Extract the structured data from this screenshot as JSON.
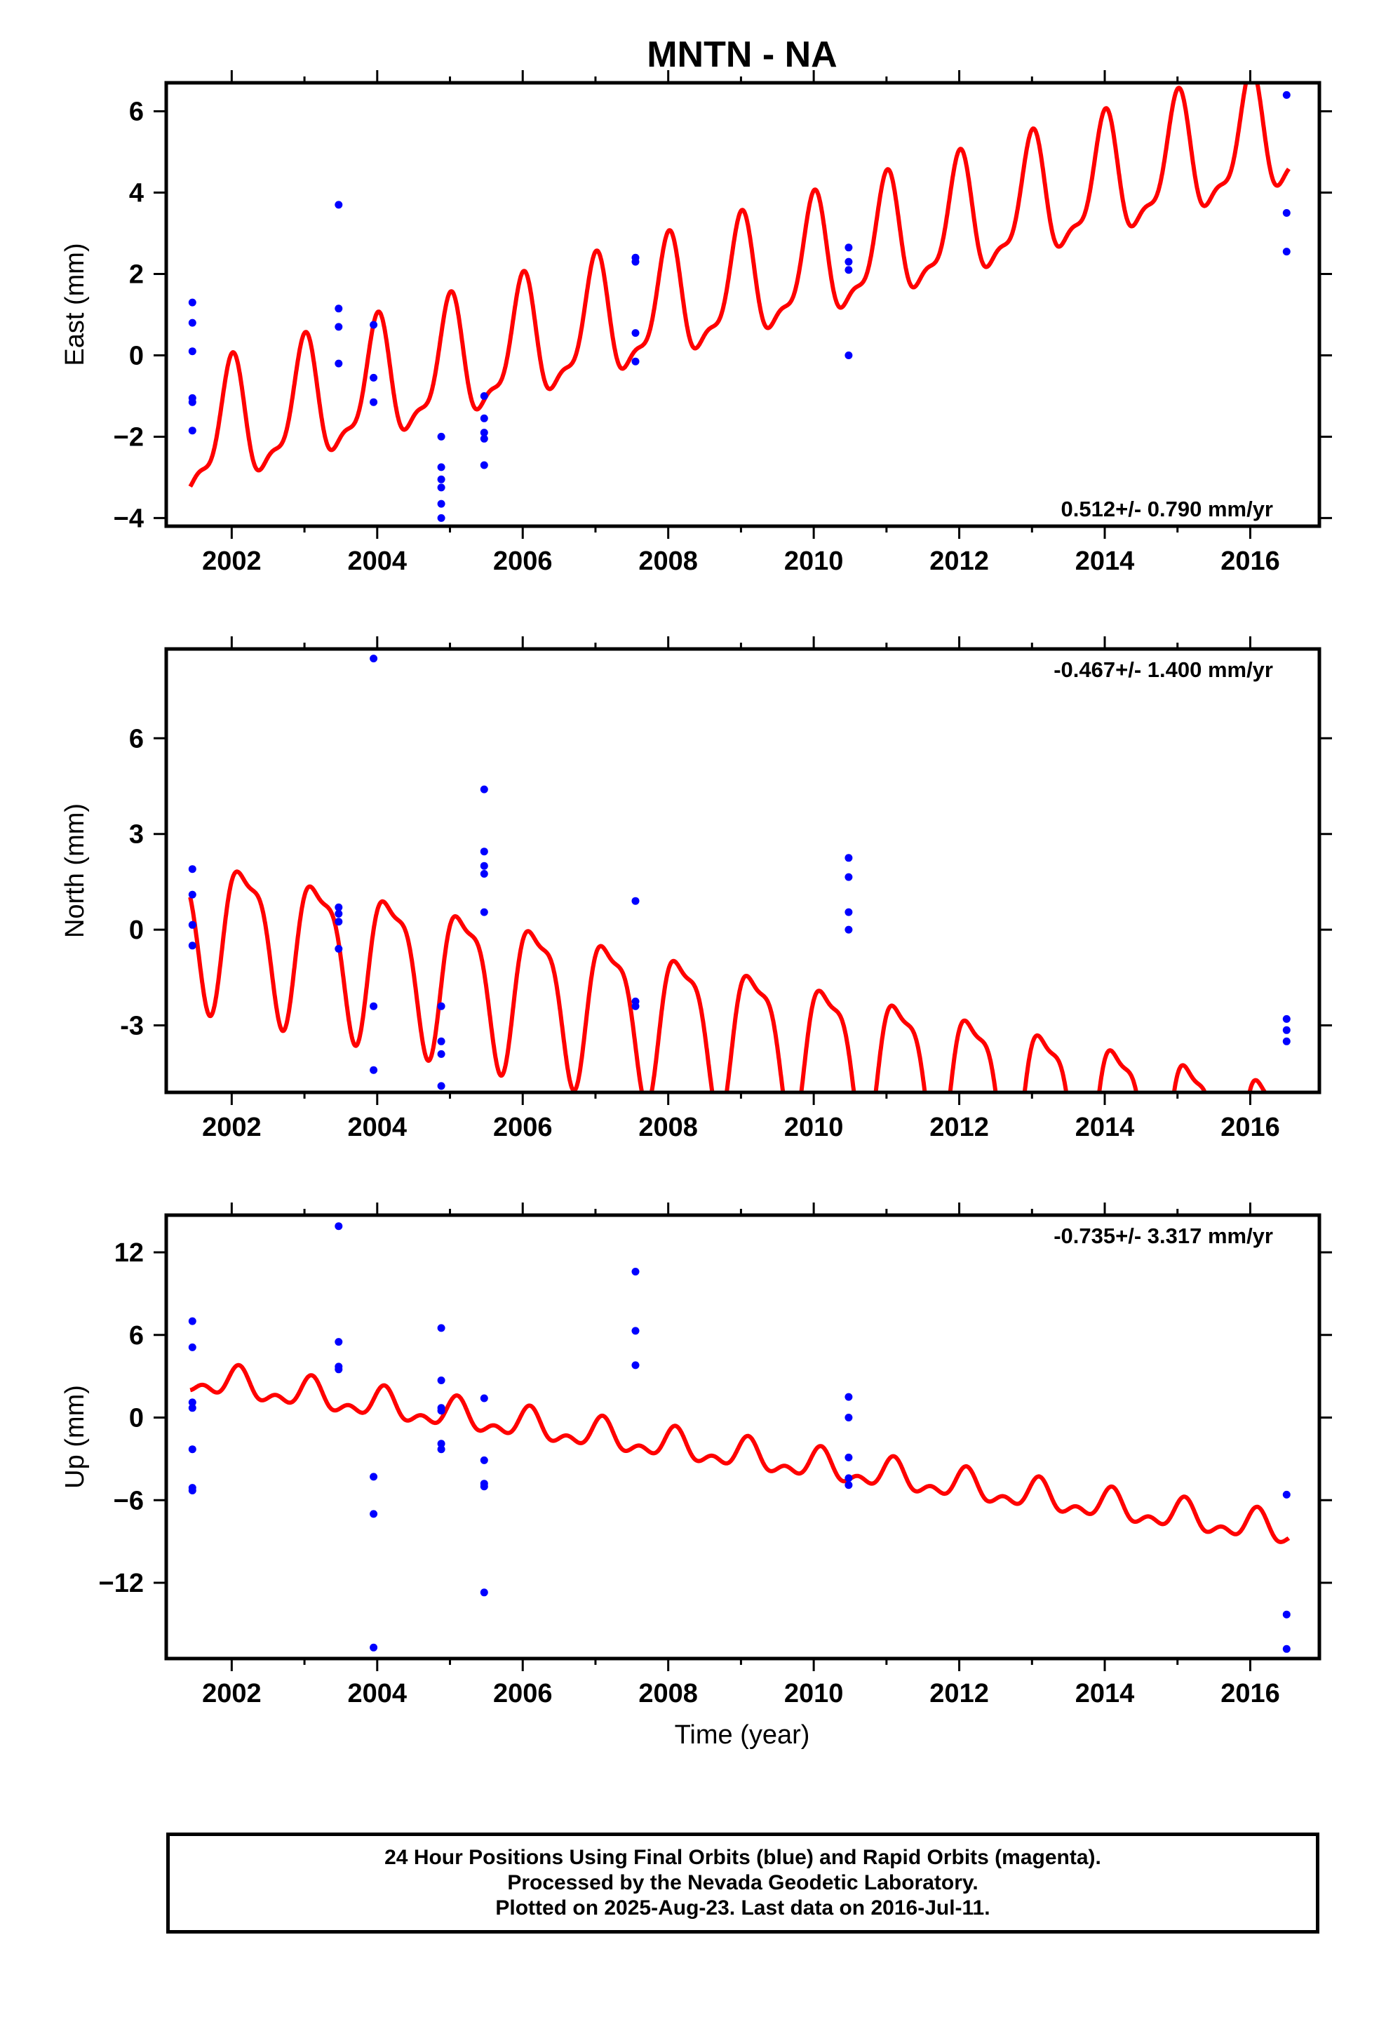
{
  "title": "MNTN - NA",
  "colors": {
    "model": "#ff0000",
    "final_orbits": "#0000ff",
    "axes": "#000000"
  },
  "xlabel": "Time (year)",
  "footer": {
    "line1": "24 Hour Positions Using Final Orbits (blue) and Rapid Orbits (magenta).",
    "line2": "Processed by the Nevada Geodetic Laboratory.",
    "line3": "Plotted on 2025-Aug-23. Last data on 2016-Jul-11."
  },
  "chart_data": [
    {
      "type": "scatter",
      "component": "east",
      "ylabel": "East (mm)",
      "rate_label": "0.512+/- 0.790 mm/yr",
      "xlim": [
        2001.1,
        2016.95
      ],
      "ylim": [
        -4.2,
        6.7
      ],
      "x_ticks": [
        2002,
        2004,
        2006,
        2008,
        2010,
        2012,
        2014,
        2016
      ],
      "y_ticks": [
        -4,
        -2,
        0,
        2,
        4,
        6
      ],
      "y_tick_labels": [
        "−4",
        "−2",
        "0",
        "2",
        "4",
        "6"
      ],
      "points": [
        [
          2001.46,
          1.3
        ],
        [
          2001.46,
          0.8
        ],
        [
          2001.46,
          0.1
        ],
        [
          2001.46,
          -1.05
        ],
        [
          2001.46,
          -1.15
        ],
        [
          2001.46,
          -1.85
        ],
        [
          2003.47,
          3.7
        ],
        [
          2003.47,
          1.15
        ],
        [
          2003.47,
          0.7
        ],
        [
          2003.47,
          -0.2
        ],
        [
          2003.95,
          0.75
        ],
        [
          2003.95,
          -0.55
        ],
        [
          2003.95,
          -1.15
        ],
        [
          2004.88,
          -2.0
        ],
        [
          2004.88,
          -2.75
        ],
        [
          2004.88,
          -3.05
        ],
        [
          2004.88,
          -3.25
        ],
        [
          2004.88,
          -3.65
        ],
        [
          2004.88,
          -4.0
        ],
        [
          2005.47,
          -1.0
        ],
        [
          2005.47,
          -1.55
        ],
        [
          2005.47,
          -1.9
        ],
        [
          2005.47,
          -2.05
        ],
        [
          2005.47,
          -2.7
        ],
        [
          2007.55,
          2.4
        ],
        [
          2007.55,
          2.3
        ],
        [
          2007.55,
          0.55
        ],
        [
          2007.55,
          -0.15
        ],
        [
          2010.48,
          2.65
        ],
        [
          2010.48,
          2.3
        ],
        [
          2010.48,
          2.1
        ],
        [
          2010.48,
          0.0
        ],
        [
          2016.5,
          6.4
        ],
        [
          2016.5,
          3.5
        ],
        [
          2016.5,
          2.55
        ]
      ],
      "model": {
        "intercept": -2.1,
        "t0": 2001.43,
        "rate": 0.5,
        "annual_amp": 1.4,
        "annual_phase": 1.6,
        "semi_amp": 0.5,
        "semi_phase": 1.2
      }
    },
    {
      "type": "scatter",
      "component": "north",
      "ylabel": "North (mm)",
      "rate_label": "-0.467+/- 1.400 mm/yr",
      "xlim": [
        2001.1,
        2016.95
      ],
      "ylim": [
        -5.1,
        8.8
      ],
      "x_ticks": [
        2002,
        2004,
        2006,
        2008,
        2010,
        2012,
        2014,
        2016
      ],
      "y_ticks": [
        -3,
        0,
        3,
        6
      ],
      "y_tick_labels": [
        "-3",
        "0",
        "3",
        "6"
      ],
      "points": [
        [
          2001.46,
          1.9
        ],
        [
          2001.46,
          1.1
        ],
        [
          2001.46,
          0.15
        ],
        [
          2001.46,
          -0.5
        ],
        [
          2003.47,
          0.7
        ],
        [
          2003.47,
          0.5
        ],
        [
          2003.47,
          0.25
        ],
        [
          2003.47,
          -0.6
        ],
        [
          2003.95,
          8.5
        ],
        [
          2003.95,
          -2.4
        ],
        [
          2003.95,
          -4.4
        ],
        [
          2004.88,
          -2.4
        ],
        [
          2004.88,
          -3.5
        ],
        [
          2004.88,
          -3.9
        ],
        [
          2004.88,
          -4.9
        ],
        [
          2005.47,
          4.4
        ],
        [
          2005.47,
          2.45
        ],
        [
          2005.47,
          2.0
        ],
        [
          2005.47,
          1.75
        ],
        [
          2005.47,
          0.55
        ],
        [
          2007.55,
          0.9
        ],
        [
          2007.55,
          -2.25
        ],
        [
          2007.55,
          -2.4
        ],
        [
          2010.48,
          2.25
        ],
        [
          2010.48,
          1.65
        ],
        [
          2010.48,
          0.55
        ],
        [
          2010.48,
          0.0
        ],
        [
          2016.5,
          -2.8
        ],
        [
          2016.5,
          -3.15
        ],
        [
          2016.5,
          -3.5
        ]
      ],
      "model": {
        "intercept": 0.3,
        "t0": 2001.43,
        "rate": -0.467,
        "annual_amp": 2.2,
        "annual_phase": 0.4,
        "semi_amp": 0.7,
        "semi_phase": 2.0
      }
    },
    {
      "type": "scatter",
      "component": "up",
      "ylabel": "Up (mm)",
      "rate_label": "-0.735+/- 3.317 mm/yr",
      "xlim": [
        2001.1,
        2016.95
      ],
      "ylim": [
        -17.5,
        14.7
      ],
      "x_ticks": [
        2002,
        2004,
        2006,
        2008,
        2010,
        2012,
        2014,
        2016
      ],
      "y_ticks": [
        -12,
        -6,
        0,
        6,
        12
      ],
      "y_tick_labels": [
        "−12",
        "−6",
        "0",
        "6",
        "12"
      ],
      "points": [
        [
          2001.46,
          7.0
        ],
        [
          2001.46,
          5.1
        ],
        [
          2001.46,
          1.1
        ],
        [
          2001.46,
          0.7
        ],
        [
          2001.46,
          -2.3
        ],
        [
          2001.46,
          -5.1
        ],
        [
          2001.46,
          -5.3
        ],
        [
          2003.47,
          13.9
        ],
        [
          2003.47,
          5.5
        ],
        [
          2003.47,
          3.7
        ],
        [
          2003.47,
          3.5
        ],
        [
          2003.95,
          -4.3
        ],
        [
          2003.95,
          -7.0
        ],
        [
          2003.95,
          -16.7
        ],
        [
          2004.88,
          6.5
        ],
        [
          2004.88,
          2.7
        ],
        [
          2004.88,
          0.7
        ],
        [
          2004.88,
          0.5
        ],
        [
          2004.88,
          -1.9
        ],
        [
          2004.88,
          -2.3
        ],
        [
          2005.47,
          1.4
        ],
        [
          2005.47,
          -3.1
        ],
        [
          2005.47,
          -4.8
        ],
        [
          2005.47,
          -5.0
        ],
        [
          2005.47,
          -12.7
        ],
        [
          2007.55,
          10.6
        ],
        [
          2007.55,
          6.3
        ],
        [
          2007.55,
          3.8
        ],
        [
          2010.48,
          1.5
        ],
        [
          2010.48,
          0.0
        ],
        [
          2010.48,
          -2.9
        ],
        [
          2010.48,
          -4.4
        ],
        [
          2010.48,
          -4.9
        ],
        [
          2016.5,
          -5.6
        ],
        [
          2016.5,
          -14.3
        ],
        [
          2016.5,
          -16.8
        ]
      ],
      "model": {
        "intercept": 2.8,
        "t0": 2001.43,
        "rate": -0.735,
        "annual_amp": 0.9,
        "annual_phase": 1.0,
        "semi_amp": 0.6,
        "semi_phase": 0.3
      }
    }
  ]
}
